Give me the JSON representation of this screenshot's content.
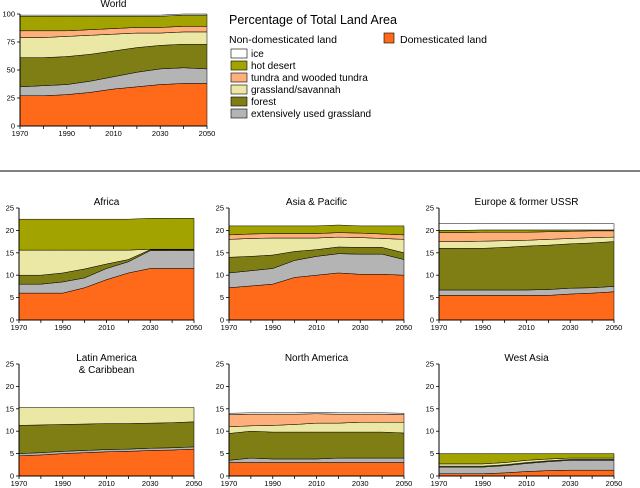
{
  "legend": {
    "title": "Percentage of Total Land Area",
    "non_domesticated": "Non-domesticated land",
    "domesticated": "Domesticated land",
    "items": [
      {
        "label": "ice",
        "color": "#ffffff"
      },
      {
        "label": "hot desert",
        "color": "#a3a300"
      },
      {
        "label": "tundra and wooded tundra",
        "color": "#ffb07a"
      },
      {
        "label": "grassland/savannah",
        "color": "#ebe7a4"
      },
      {
        "label": "forest",
        "color": "#7e7e14"
      },
      {
        "label": "extensively used grassland",
        "color": "#b4b4b4"
      }
    ],
    "domesticated_color": "#ff6a1a"
  },
  "chart_data": [
    {
      "type": "area",
      "title": "World",
      "x": [
        1970,
        1980,
        1990,
        2000,
        2010,
        2020,
        2030,
        2040,
        2050
      ],
      "xticks": [
        1970,
        1990,
        2010,
        2030,
        2050
      ],
      "ylim": [
        0,
        100
      ],
      "yticks": [
        0,
        25,
        50,
        75,
        100
      ],
      "series": [
        {
          "name": "Domesticated land",
          "color": "#ff6a1a",
          "values": [
            27,
            27,
            28,
            30,
            33,
            35,
            37,
            38,
            38
          ]
        },
        {
          "name": "extensively used grassland",
          "color": "#b4b4b4",
          "values": [
            8,
            9,
            9,
            10,
            11,
            13,
            14,
            14,
            13
          ]
        },
        {
          "name": "forest",
          "color": "#7e7e14",
          "values": [
            26,
            25,
            25,
            24,
            23,
            22,
            21,
            21,
            22
          ]
        },
        {
          "name": "grassland/savannah",
          "color": "#ebe7a4",
          "values": [
            18,
            18,
            18,
            17,
            15,
            13,
            11,
            11,
            11
          ]
        },
        {
          "name": "tundra and wooded tundra",
          "color": "#ffb07a",
          "values": [
            6,
            6,
            5,
            5,
            5,
            5,
            5,
            5,
            5
          ]
        },
        {
          "name": "hot desert",
          "color": "#a3a300",
          "values": [
            13,
            13,
            13,
            12,
            11,
            10,
            10,
            10,
            10
          ]
        },
        {
          "name": "ice",
          "color": "#ffffff",
          "values": [
            1,
            1,
            1,
            1,
            1,
            1,
            1,
            1,
            1
          ]
        }
      ]
    },
    {
      "type": "area",
      "title": "Africa",
      "x": [
        1970,
        1980,
        1990,
        2000,
        2010,
        2020,
        2030,
        2040,
        2050
      ],
      "xticks": [
        1970,
        1990,
        2010,
        2030,
        2050
      ],
      "ylim": [
        0,
        25
      ],
      "yticks": [
        0,
        5,
        10,
        15,
        20,
        25
      ],
      "series": [
        {
          "name": "Domesticated land",
          "color": "#ff6a1a",
          "values": [
            6,
            6,
            6,
            7.2,
            9,
            10.5,
            11.5,
            11.5,
            11.5
          ]
        },
        {
          "name": "extensively used grassland",
          "color": "#b4b4b4",
          "values": [
            2,
            2,
            2.5,
            2.2,
            2.5,
            2.5,
            4,
            4,
            4
          ]
        },
        {
          "name": "forest",
          "color": "#7e7e14",
          "values": [
            2,
            2,
            2,
            2,
            1,
            0.5,
            0.2,
            0.2,
            0.2
          ]
        },
        {
          "name": "grassland/savannah",
          "color": "#ebe7a4",
          "values": [
            5.6,
            5.6,
            5.1,
            4.2,
            3.1,
            2.1,
            0.1,
            0.1,
            0.1
          ]
        },
        {
          "name": "tundra and wooded tundra",
          "color": "#ffb07a",
          "values": [
            0,
            0,
            0,
            0,
            0,
            0,
            0,
            0,
            0
          ]
        },
        {
          "name": "hot desert",
          "color": "#a3a300",
          "values": [
            6.9,
            6.9,
            6.9,
            6.9,
            6.9,
            6.9,
            6.9,
            6.9,
            6.9
          ]
        },
        {
          "name": "ice",
          "color": "#ffffff",
          "values": [
            0,
            0,
            0,
            0,
            0,
            0,
            0,
            0,
            0
          ]
        }
      ]
    },
    {
      "type": "area",
      "title": "Asia & Pacific",
      "x": [
        1970,
        1980,
        1990,
        2000,
        2010,
        2020,
        2030,
        2040,
        2050
      ],
      "xticks": [
        1970,
        1990,
        2010,
        2030,
        2050
      ],
      "ylim": [
        0,
        25
      ],
      "yticks": [
        0,
        5,
        10,
        15,
        20,
        25
      ],
      "series": [
        {
          "name": "Domesticated land",
          "color": "#ff6a1a",
          "values": [
            7.2,
            7.6,
            8,
            9.5,
            10,
            10.5,
            10.2,
            10.2,
            10
          ]
        },
        {
          "name": "extensively used grassland",
          "color": "#b4b4b4",
          "values": [
            3.3,
            3.4,
            3.5,
            3.8,
            4.2,
            4.3,
            4.5,
            4.5,
            3.5
          ]
        },
        {
          "name": "forest",
          "color": "#7e7e14",
          "values": [
            3.5,
            3.2,
            3,
            2,
            1.5,
            1.5,
            1.5,
            1.5,
            1.5
          ]
        },
        {
          "name": "grassland/savannah",
          "color": "#ebe7a4",
          "values": [
            4,
            4,
            3.8,
            3,
            2.6,
            2.2,
            2.2,
            2,
            3
          ]
        },
        {
          "name": "tundra and wooded tundra",
          "color": "#ffb07a",
          "values": [
            1,
            1,
            1,
            1,
            1,
            1,
            1,
            1,
            1
          ]
        },
        {
          "name": "hot desert",
          "color": "#a3a300",
          "values": [
            2,
            1.8,
            1.7,
            1.7,
            1.7,
            1.7,
            1.6,
            1.8,
            2
          ]
        },
        {
          "name": "ice",
          "color": "#ffffff",
          "values": [
            0,
            0,
            0,
            0,
            0,
            0,
            0,
            0,
            0
          ]
        }
      ]
    },
    {
      "type": "area",
      "title": "Europe & former USSR",
      "x": [
        1970,
        1980,
        1990,
        2000,
        2010,
        2020,
        2030,
        2040,
        2050
      ],
      "xticks": [
        1970,
        1990,
        2010,
        2030,
        2050
      ],
      "ylim": [
        0,
        25
      ],
      "yticks": [
        0,
        5,
        10,
        15,
        20,
        25
      ],
      "series": [
        {
          "name": "Domesticated land",
          "color": "#ff6a1a",
          "values": [
            5.5,
            5.5,
            5.5,
            5.5,
            5.5,
            5.5,
            5.8,
            6,
            6.3
          ]
        },
        {
          "name": "extensively used grassland",
          "color": "#b4b4b4",
          "values": [
            1.2,
            1.2,
            1.2,
            1.2,
            1.2,
            1.3,
            1.3,
            1.2,
            1.2
          ]
        },
        {
          "name": "forest",
          "color": "#7e7e14",
          "values": [
            9.3,
            9.3,
            9.3,
            9.5,
            9.8,
            9.9,
            9.9,
            10,
            10
          ]
        },
        {
          "name": "grassland/savannah",
          "color": "#ebe7a4",
          "values": [
            1.5,
            1.5,
            1.6,
            1.5,
            1.3,
            1.3,
            1.2,
            1.2,
            1
          ]
        },
        {
          "name": "tundra and wooded tundra",
          "color": "#ffb07a",
          "values": [
            2,
            2,
            2,
            1.9,
            1.8,
            1.7,
            1.6,
            1.5,
            1.4
          ]
        },
        {
          "name": "hot desert",
          "color": "#a3a300",
          "values": [
            0.5,
            0.5,
            0.5,
            0.5,
            0.5,
            0.4,
            0.3,
            0.2,
            0.2
          ]
        },
        {
          "name": "ice",
          "color": "#ffffff",
          "values": [
            1.5,
            1.5,
            1.4,
            1.4,
            1.4,
            1.4,
            1.4,
            1.4,
            1.4
          ]
        }
      ]
    },
    {
      "type": "area",
      "title": "Latin America\n& Caribbean",
      "x": [
        1970,
        1980,
        1990,
        2000,
        2010,
        2020,
        2030,
        2040,
        2050
      ],
      "xticks": [
        1970,
        1990,
        2010,
        2030,
        2050
      ],
      "ylim": [
        0,
        25
      ],
      "yticks": [
        0,
        5,
        10,
        15,
        20,
        25
      ],
      "series": [
        {
          "name": "Domesticated land",
          "color": "#ff6a1a",
          "values": [
            4.5,
            4.7,
            5,
            5.2,
            5.4,
            5.5,
            5.7,
            5.8,
            6
          ]
        },
        {
          "name": "extensively used grassland",
          "color": "#b4b4b4",
          "values": [
            0.5,
            0.5,
            0.5,
            0.5,
            0.5,
            0.5,
            0.5,
            0.5,
            0.5
          ]
        },
        {
          "name": "forest",
          "color": "#7e7e14",
          "values": [
            6.3,
            6.2,
            6,
            5.9,
            5.8,
            5.7,
            5.6,
            5.6,
            5.6
          ]
        },
        {
          "name": "grassland/savannah",
          "color": "#ebe7a4",
          "values": [
            4,
            3.9,
            3.8,
            3.7,
            3.6,
            3.6,
            3.5,
            3.4,
            3.2
          ]
        },
        {
          "name": "tundra and wooded tundra",
          "color": "#ffb07a",
          "values": [
            0,
            0,
            0,
            0,
            0,
            0,
            0,
            0,
            0
          ]
        },
        {
          "name": "hot desert",
          "color": "#a3a300",
          "values": [
            0,
            0,
            0,
            0,
            0,
            0,
            0,
            0,
            0
          ]
        },
        {
          "name": "ice",
          "color": "#ffffff",
          "values": [
            0,
            0,
            0,
            0,
            0,
            0,
            0,
            0,
            0
          ]
        }
      ]
    },
    {
      "type": "area",
      "title": "North America",
      "x": [
        1970,
        1980,
        1990,
        2000,
        2010,
        2020,
        2030,
        2040,
        2050
      ],
      "xticks": [
        1970,
        1990,
        2010,
        2030,
        2050
      ],
      "ylim": [
        0,
        25
      ],
      "yticks": [
        0,
        5,
        10,
        15,
        20,
        25
      ],
      "series": [
        {
          "name": "Domesticated land",
          "color": "#ff6a1a",
          "values": [
            3,
            3,
            3,
            3,
            3,
            3,
            3,
            3,
            3
          ]
        },
        {
          "name": "extensively used grassland",
          "color": "#b4b4b4",
          "values": [
            0.5,
            1,
            0.8,
            0.8,
            0.8,
            1,
            1,
            1,
            1
          ]
        },
        {
          "name": "forest",
          "color": "#7e7e14",
          "values": [
            6,
            6,
            6,
            6,
            6,
            5.8,
            5.8,
            5.8,
            5.6
          ]
        },
        {
          "name": "grassland/savannah",
          "color": "#ebe7a4",
          "values": [
            1.5,
            1.2,
            1.5,
            1.7,
            2,
            2,
            2.2,
            2.2,
            2.4
          ]
        },
        {
          "name": "tundra and wooded tundra",
          "color": "#ffb07a",
          "values": [
            2.7,
            2.6,
            2.5,
            2.3,
            2.1,
            2,
            1.8,
            1.8,
            1.7
          ]
        },
        {
          "name": "hot desert",
          "color": "#a3a300",
          "values": [
            0,
            0,
            0,
            0,
            0,
            0,
            0,
            0,
            0
          ]
        },
        {
          "name": "ice",
          "color": "#ffffff",
          "values": [
            0.3,
            0.3,
            0.3,
            0.3,
            0.3,
            0.3,
            0.3,
            0.3,
            0.3
          ]
        }
      ]
    },
    {
      "type": "area",
      "title": "West Asia",
      "x": [
        1970,
        1980,
        1990,
        2000,
        2010,
        2020,
        2030,
        2040,
        2050
      ],
      "xticks": [
        1970,
        1990,
        2010,
        2030,
        2050
      ],
      "ylim": [
        0,
        25
      ],
      "yticks": [
        0,
        5,
        10,
        15,
        20,
        25
      ],
      "series": [
        {
          "name": "Domesticated land",
          "color": "#ff6a1a",
          "values": [
            0.5,
            0.5,
            0.5,
            0.7,
            1,
            1.2,
            1.3,
            1.3,
            1.3
          ]
        },
        {
          "name": "extensively used grassland",
          "color": "#b4b4b4",
          "values": [
            1.5,
            1.5,
            1.5,
            1.6,
            1.8,
            2,
            2.2,
            2.2,
            2.2
          ]
        },
        {
          "name": "forest",
          "color": "#7e7e14",
          "values": [
            0.2,
            0.2,
            0.2,
            0.2,
            0.2,
            0.2,
            0.2,
            0.2,
            0.2
          ]
        },
        {
          "name": "grassland/savannah",
          "color": "#ebe7a4",
          "values": [
            0.5,
            0.5,
            0.5,
            0.5,
            0.5,
            0.4,
            0.3,
            0.3,
            0.3
          ]
        },
        {
          "name": "tundra and wooded tundra",
          "color": "#ffb07a",
          "values": [
            0,
            0,
            0,
            0,
            0,
            0,
            0,
            0,
            0
          ]
        },
        {
          "name": "hot desert",
          "color": "#a3a300",
          "values": [
            2.3,
            2.3,
            2.3,
            2,
            1.5,
            1.2,
            1,
            1,
            1
          ]
        },
        {
          "name": "ice",
          "color": "#ffffff",
          "values": [
            0,
            0,
            0,
            0,
            0,
            0,
            0,
            0,
            0
          ]
        }
      ]
    }
  ]
}
